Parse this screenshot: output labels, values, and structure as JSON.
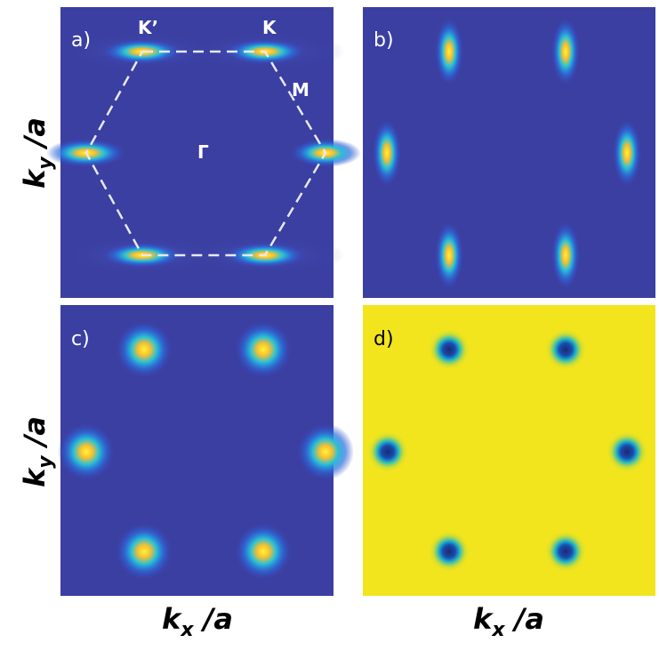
{
  "panels": [
    {
      "label": "a)",
      "points": {
        "k_prime": "K’",
        "k": "K",
        "m": "M",
        "gamma": "Γ"
      }
    },
    {
      "label": "b)"
    },
    {
      "label": "c)"
    },
    {
      "label": "d)"
    }
  ],
  "axes": {
    "y_top": {
      "main": "k",
      "sub": "y",
      "rest": " /a"
    },
    "y_bottom": {
      "main": "k",
      "sub": "y",
      "rest": " /a"
    },
    "x_left": {
      "main": "k",
      "sub": "x",
      "rest": " /a"
    },
    "x_right": {
      "main": "k",
      "sub": "x",
      "rest": " /a"
    }
  }
}
